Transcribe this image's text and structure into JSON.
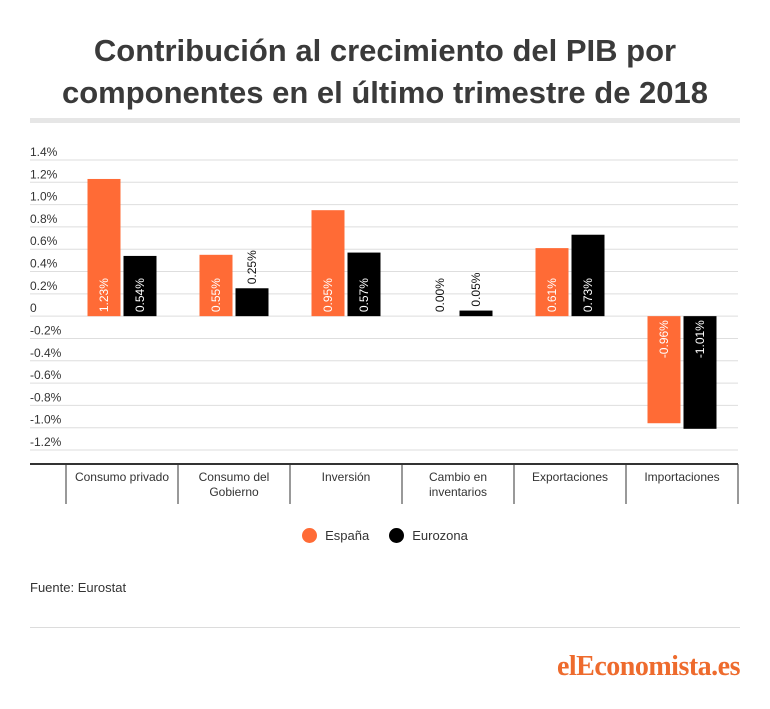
{
  "title_line1": "Contribución al crecimiento del PIB por",
  "title_line2": "componentes en el último trimestre de 2018",
  "source": "Fuente: Eurostat",
  "brand": "elEconomista.es",
  "colors": {
    "espana": "#ff6b36",
    "eurozona": "#000000"
  },
  "chart_data": {
    "type": "bar",
    "categories": [
      "Consumo privado",
      "Consumo del Gobierno",
      "Inversión",
      "Cambio en inventarios",
      "Exportaciones",
      "Importaciones"
    ],
    "series": [
      {
        "name": "España",
        "values": [
          1.23,
          0.55,
          0.95,
          0.0,
          0.61,
          -0.96
        ],
        "labels": [
          "1.23%",
          "0.55%",
          "0.95%",
          "0.00%",
          "0.61%",
          "-0.96%"
        ]
      },
      {
        "name": "Eurozona",
        "values": [
          0.54,
          0.25,
          0.57,
          0.05,
          0.73,
          -1.01
        ],
        "labels": [
          "0.54%",
          "0.25%",
          "0.57%",
          "0.05%",
          "0.73%",
          "-1.01%"
        ]
      }
    ],
    "ylim": [
      -1.2,
      1.4
    ],
    "yticks": [
      1.4,
      1.2,
      1.0,
      0.8,
      0.6,
      0.4,
      0.2,
      0,
      -0.2,
      -0.4,
      -0.6,
      -0.8,
      -1.0,
      -1.2
    ],
    "ytick_labels": [
      "1.4%",
      "1.2%",
      "1.0%",
      "0.8%",
      "0.6%",
      "0.4%",
      "0.2%",
      "0",
      "-0.2%",
      "-0.4%",
      "-0.6%",
      "-0.8%",
      "-1.0%",
      "-1.2%"
    ],
    "category_label_lines": [
      [
        "Consumo privado"
      ],
      [
        "Consumo del",
        "Gobierno"
      ],
      [
        "Inversión"
      ],
      [
        "Cambio en",
        "inventarios"
      ],
      [
        "Exportaciones"
      ],
      [
        "Importaciones"
      ]
    ],
    "grid": true,
    "legend_position": "bottom"
  }
}
